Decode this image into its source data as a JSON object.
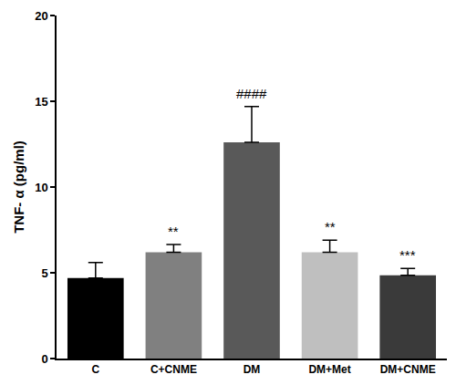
{
  "chart_data": {
    "type": "bar",
    "y_label": "TNF- α (pg/ml)",
    "categories": [
      "C",
      "C+CNME",
      "DM",
      "DM+Met",
      "DM+CNME"
    ],
    "values": [
      4.7,
      6.2,
      12.6,
      6.2,
      4.85
    ],
    "error": [
      0.9,
      0.45,
      2.1,
      0.7,
      0.4
    ],
    "annotations": [
      null,
      "**",
      "####",
      "**",
      "***"
    ],
    "colors": [
      "#000000",
      "#808080",
      "#595959",
      "#bfbfbf",
      "#3a3a3a"
    ],
    "ylim": [
      0,
      20
    ],
    "yticks": [
      0,
      5,
      10,
      15,
      20
    ],
    "grid": false
  }
}
